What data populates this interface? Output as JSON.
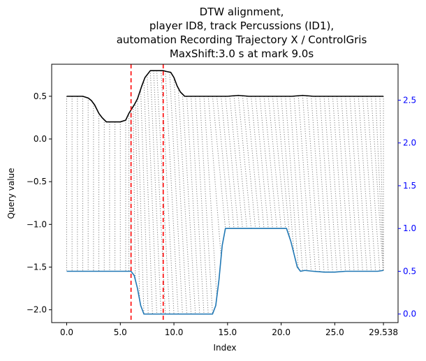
{
  "chart_data": {
    "type": "line",
    "title_lines": [
      "DTW alignment,",
      "player ID8, track Percussions (ID1),",
      "automation Recording Trajectory X / ControlGris",
      "MaxShift:3.0 s at mark 9.0s"
    ],
    "xlabel": "Index",
    "ylabel": "Query value",
    "xlim": [
      -1.4,
      30.9
    ],
    "ylim_left": [
      -2.15,
      0.875
    ],
    "ylim_right": [
      -0.1,
      2.92
    ],
    "x_ticks": [
      0.0,
      5.0,
      10.0,
      15.0,
      20.0,
      25.0,
      29.538
    ],
    "x_tick_labels": [
      "0.0",
      "5.0",
      "10.0",
      "15.0",
      "20.0",
      "25.0",
      "29.538"
    ],
    "y_left_ticks": [
      0.5,
      0.0,
      -0.5,
      -1.0,
      -1.5,
      -2.0
    ],
    "y_left_tick_labels": [
      "0.5",
      "0.0",
      "−0.5",
      "−1.0",
      "−1.5",
      "−2.0"
    ],
    "y_right_ticks": [
      2.5,
      2.0,
      1.5,
      1.0,
      0.5,
      0.0
    ],
    "y_right_tick_labels": [
      "2.5",
      "2.0",
      "1.5",
      "1.0",
      "0.5",
      "0.0"
    ],
    "right_axis_color": "#0000ff",
    "series": [
      {
        "role": "query",
        "color": "#000000",
        "x": [
          0,
          1,
          1.5,
          2,
          2.3,
          2.6,
          3,
          3.3,
          3.7,
          4.5,
          5,
          5.5,
          5.8,
          6.0,
          6.3,
          6.6,
          7.0,
          7.3,
          7.8,
          8.5,
          9.0,
          9.3,
          9.7,
          10.0,
          10.3,
          10.6,
          11.0,
          12,
          13,
          14,
          15,
          16,
          17,
          18,
          19,
          20,
          21,
          22,
          23,
          24,
          25,
          26,
          27,
          28,
          29,
          29.538
        ],
        "y": [
          0.5,
          0.5,
          0.5,
          0.48,
          0.45,
          0.4,
          0.3,
          0.25,
          0.2,
          0.2,
          0.2,
          0.22,
          0.3,
          0.34,
          0.4,
          0.47,
          0.62,
          0.72,
          0.8,
          0.8,
          0.8,
          0.79,
          0.78,
          0.72,
          0.62,
          0.55,
          0.5,
          0.5,
          0.5,
          0.5,
          0.5,
          0.51,
          0.5,
          0.5,
          0.5,
          0.5,
          0.5,
          0.51,
          0.5,
          0.5,
          0.5,
          0.5,
          0.5,
          0.5,
          0.5,
          0.5
        ]
      },
      {
        "role": "reference",
        "color": "#1f77b4",
        "x": [
          0,
          1,
          2,
          3,
          4,
          5,
          6.0,
          6.3,
          6.6,
          6.9,
          7.2,
          8,
          9,
          10,
          11,
          12,
          13,
          13.6,
          13.9,
          14.2,
          14.5,
          14.8,
          15,
          16,
          17,
          18,
          19,
          20,
          20.5,
          20.9,
          21.2,
          21.5,
          21.8,
          22.2,
          23,
          24,
          25,
          26,
          27,
          28,
          29,
          29.538
        ],
        "y": [
          0.5,
          0.5,
          0.5,
          0.5,
          0.5,
          0.5,
          0.5,
          0.45,
          0.3,
          0.1,
          0.0,
          0.0,
          0.0,
          0.0,
          0.0,
          0.0,
          0.0,
          0.0,
          0.1,
          0.4,
          0.8,
          1.0,
          1.0,
          1.0,
          1.0,
          1.0,
          1.0,
          1.0,
          1.0,
          0.85,
          0.7,
          0.55,
          0.5,
          0.51,
          0.5,
          0.49,
          0.49,
          0.5,
          0.5,
          0.5,
          0.5,
          0.51
        ]
      }
    ],
    "markers": [
      {
        "x": 6.0,
        "color": "#ff0000",
        "style": "dashed"
      },
      {
        "x": 9.0,
        "color": "#ff0000",
        "style": "dashed"
      }
    ],
    "alignment_lines": {
      "color": "#808080",
      "style": "dotted",
      "pairs": [
        [
          0.0,
          0.0
        ],
        [
          0.5,
          0.5
        ],
        [
          1.0,
          1.0
        ],
        [
          1.5,
          1.5
        ],
        [
          2.0,
          2.0
        ],
        [
          2.5,
          2.5
        ],
        [
          3.0,
          3.0
        ],
        [
          3.5,
          3.5
        ],
        [
          4.0,
          4.0
        ],
        [
          4.5,
          4.5
        ],
        [
          5.0,
          5.0
        ],
        [
          5.5,
          5.5
        ],
        [
          5.8,
          5.8
        ],
        [
          6.0,
          6.0
        ],
        [
          6.2,
          6.4
        ],
        [
          6.4,
          6.8
        ],
        [
          6.6,
          7.2
        ],
        [
          6.9,
          7.6
        ],
        [
          7.2,
          8.0
        ],
        [
          7.5,
          8.4
        ],
        [
          7.8,
          8.8
        ],
        [
          8.1,
          9.2
        ],
        [
          8.4,
          9.6
        ],
        [
          8.8,
          10.0
        ],
        [
          9.2,
          10.4
        ],
        [
          9.6,
          10.8
        ],
        [
          10.0,
          11.2
        ],
        [
          10.4,
          11.6
        ],
        [
          10.8,
          12.0
        ],
        [
          11.2,
          12.4
        ],
        [
          11.6,
          12.8
        ],
        [
          12.0,
          13.2
        ],
        [
          12.4,
          13.6
        ],
        [
          12.8,
          14.0
        ],
        [
          13.2,
          14.4
        ],
        [
          13.6,
          14.8
        ],
        [
          14.0,
          15.2
        ],
        [
          14.4,
          15.6
        ],
        [
          14.8,
          16.0
        ],
        [
          15.2,
          16.4
        ],
        [
          15.6,
          16.8
        ],
        [
          16.0,
          17.2
        ],
        [
          16.4,
          17.6
        ],
        [
          16.8,
          18.0
        ],
        [
          17.2,
          18.4
        ],
        [
          17.6,
          18.8
        ],
        [
          18.0,
          19.2
        ],
        [
          18.4,
          19.6
        ],
        [
          18.8,
          20.0
        ],
        [
          19.2,
          20.4
        ],
        [
          19.6,
          20.8
        ],
        [
          20.0,
          21.2
        ],
        [
          20.4,
          21.6
        ],
        [
          20.8,
          22.0
        ],
        [
          21.2,
          22.4
        ],
        [
          21.6,
          22.8
        ],
        [
          22.0,
          23.2
        ],
        [
          22.4,
          23.6
        ],
        [
          22.8,
          24.0
        ],
        [
          23.2,
          24.4
        ],
        [
          23.6,
          24.8
        ],
        [
          24.0,
          25.2
        ],
        [
          24.4,
          25.6
        ],
        [
          24.8,
          26.0
        ],
        [
          25.2,
          26.4
        ],
        [
          25.6,
          26.8
        ],
        [
          26.0,
          27.2
        ],
        [
          26.4,
          27.6
        ],
        [
          26.8,
          28.0
        ],
        [
          27.2,
          28.4
        ],
        [
          27.6,
          28.8
        ],
        [
          28.0,
          29.2
        ],
        [
          28.4,
          29.5
        ],
        [
          28.8,
          29.538
        ],
        [
          29.2,
          29.538
        ],
        [
          29.538,
          29.538
        ]
      ]
    },
    "grid": false,
    "legend": "none"
  }
}
